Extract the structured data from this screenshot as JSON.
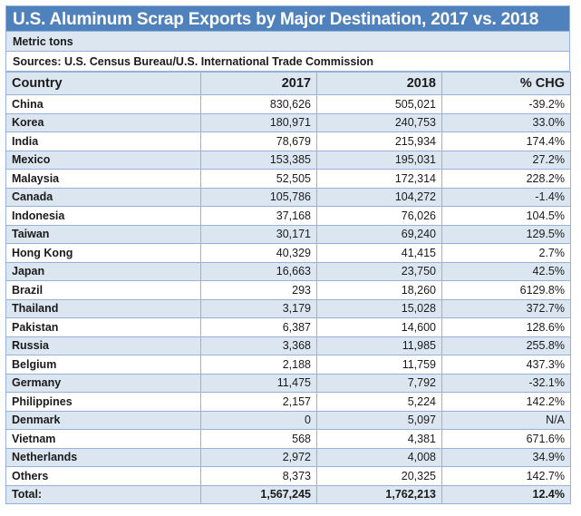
{
  "title": "U.S. Aluminum Scrap Exports by Major Destination, 2017 vs. 2018",
  "units": "Metric tons",
  "sources": "Sources: U.S. Census Bureau/U.S. International Trade Commission",
  "colors": {
    "header": "#4f81bd",
    "band": "#dce6f1",
    "grid": "#95b3d7"
  },
  "columns": [
    "Country",
    "2017",
    "2018",
    "% CHG"
  ],
  "rows": [
    [
      "China",
      "830,626",
      "505,021",
      "-39.2%"
    ],
    [
      "Korea",
      "180,971",
      "240,753",
      "33.0%"
    ],
    [
      "India",
      "78,679",
      "215,934",
      "174.4%"
    ],
    [
      "Mexico",
      "153,385",
      "195,031",
      "27.2%"
    ],
    [
      "Malaysia",
      "52,505",
      "172,314",
      "228.2%"
    ],
    [
      "Canada",
      "105,786",
      "104,272",
      "-1.4%"
    ],
    [
      "Indonesia",
      "37,168",
      "76,026",
      "104.5%"
    ],
    [
      "Taiwan",
      "30,171",
      "69,240",
      "129.5%"
    ],
    [
      "Hong Kong",
      "40,329",
      "41,415",
      "2.7%"
    ],
    [
      "Japan",
      "16,663",
      "23,750",
      "42.5%"
    ],
    [
      "Brazil",
      "293",
      "18,260",
      "6129.8%"
    ],
    [
      "Thailand",
      "3,179",
      "15,028",
      "372.7%"
    ],
    [
      "Pakistan",
      "6,387",
      "14,600",
      "128.6%"
    ],
    [
      "Russia",
      "3,368",
      "11,985",
      "255.8%"
    ],
    [
      "Belgium",
      "2,188",
      "11,759",
      "437.3%"
    ],
    [
      "Germany",
      "11,475",
      "7,792",
      "-32.1%"
    ],
    [
      "Philippines",
      "2,157",
      "5,224",
      "142.2%"
    ],
    [
      "Denmark",
      "0",
      "5,097",
      "N/A"
    ],
    [
      "Vietnam",
      "568",
      "4,381",
      "671.6%"
    ],
    [
      "Netherlands",
      "2,972",
      "4,008",
      "34.9%"
    ],
    [
      "Others",
      "8,373",
      "20,325",
      "142.7%"
    ]
  ],
  "total": [
    "Total:",
    "1,567,245",
    "1,762,213",
    "12.4%"
  ]
}
